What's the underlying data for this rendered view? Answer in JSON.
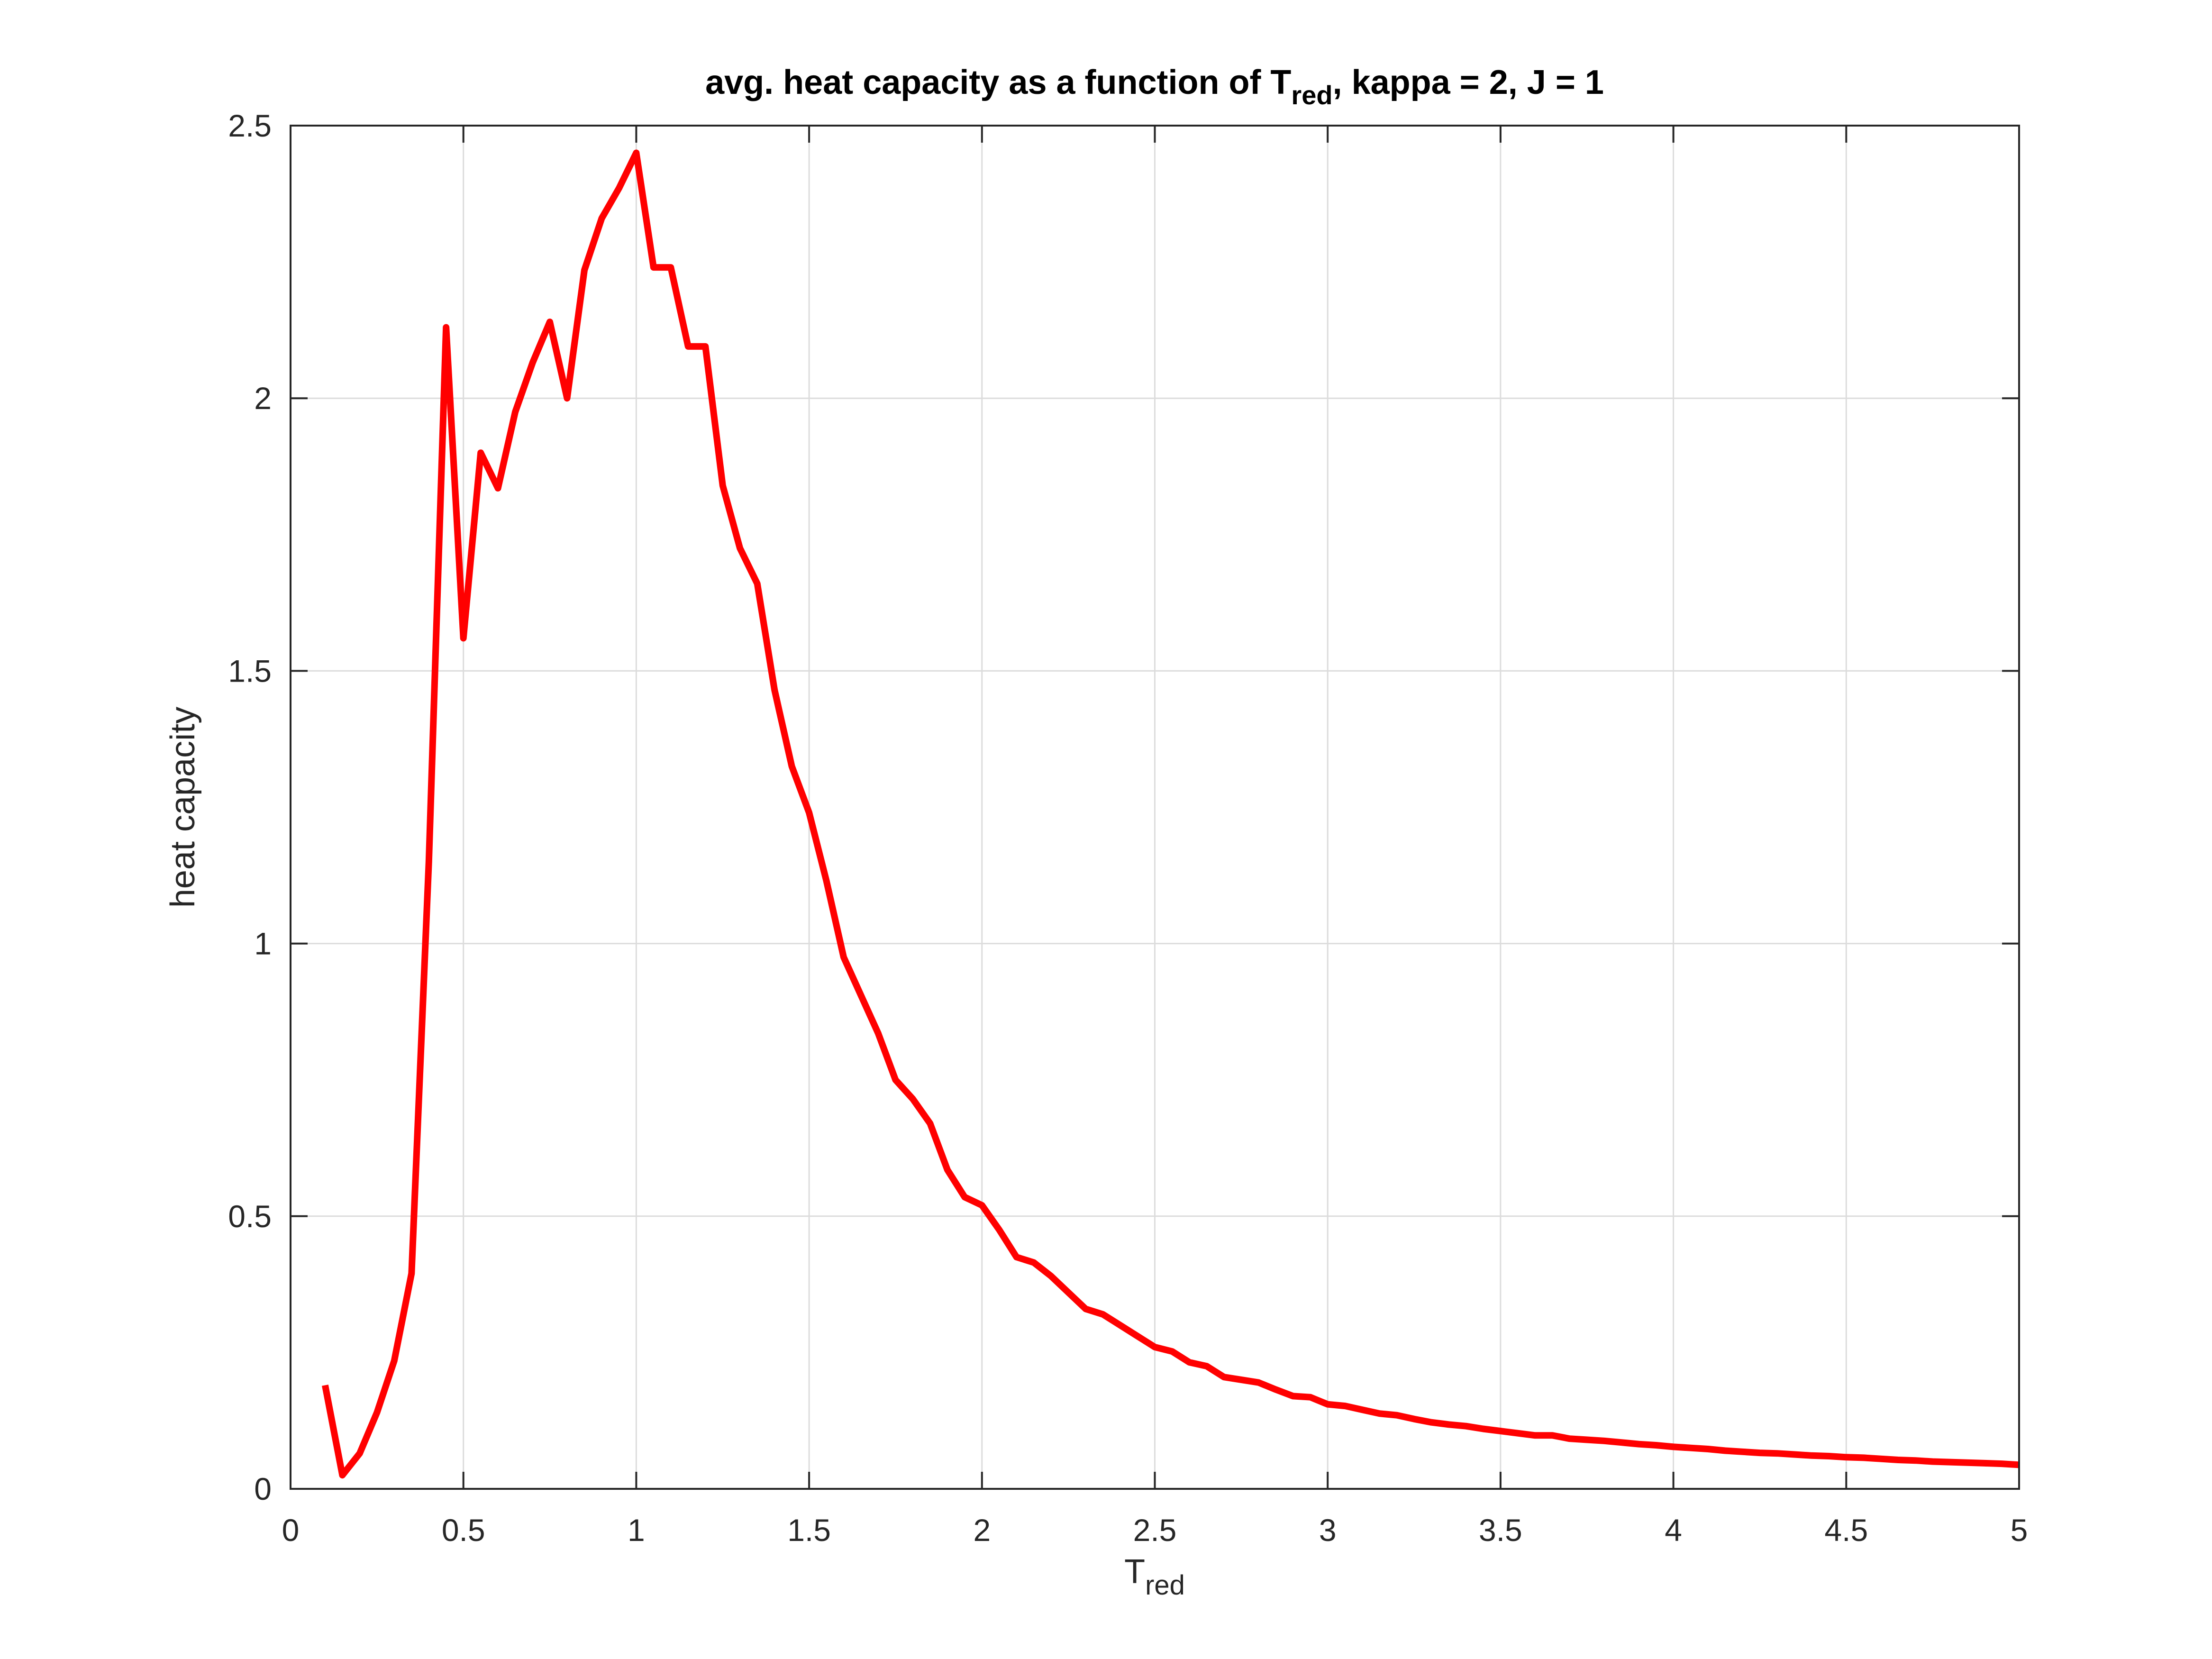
{
  "chart_data": {
    "type": "line",
    "title": {
      "prefix": "avg. heat capacity as a function of T",
      "subscript": "red",
      "suffix": ", kappa = 2, J = 1"
    },
    "xlabel": {
      "main": "T",
      "subscript": "red"
    },
    "ylabel": "heat capacity",
    "xlim": [
      0,
      5
    ],
    "ylim": [
      0,
      2.5
    ],
    "xticks": [
      0,
      0.5,
      1,
      1.5,
      2,
      2.5,
      3,
      3.5,
      4,
      4.5,
      5
    ],
    "xtick_labels": [
      "0",
      "0.5",
      "1",
      "1.5",
      "2",
      "2.5",
      "3",
      "3.5",
      "4",
      "4.5",
      "5"
    ],
    "yticks": [
      0,
      0.5,
      1,
      1.5,
      2,
      2.5
    ],
    "ytick_labels": [
      "0",
      "0.5",
      "1",
      "1.5",
      "2",
      "2.5"
    ],
    "grid": true,
    "line_color": "#ff0000",
    "series": [
      {
        "x": [
          0.1,
          0.15,
          0.2,
          0.25,
          0.3,
          0.35,
          0.4,
          0.45,
          0.5,
          0.55,
          0.6,
          0.65,
          0.7,
          0.75,
          0.8,
          0.85,
          0.9,
          0.95,
          1.0,
          1.05,
          1.1,
          1.15,
          1.2,
          1.25,
          1.3,
          1.35,
          1.4,
          1.45,
          1.5,
          1.55,
          1.6,
          1.65,
          1.7,
          1.75,
          1.8,
          1.85,
          1.9,
          1.95,
          2.0,
          2.05,
          2.1,
          2.15,
          2.2,
          2.25,
          2.3,
          2.35,
          2.4,
          2.45,
          2.5,
          2.55,
          2.6,
          2.65,
          2.7,
          2.75,
          2.8,
          2.85,
          2.9,
          2.95,
          3.0,
          3.05,
          3.1,
          3.15,
          3.2,
          3.25,
          3.3,
          3.35,
          3.4,
          3.45,
          3.5,
          3.55,
          3.6,
          3.65,
          3.7,
          3.75,
          3.8,
          3.85,
          3.9,
          3.95,
          4.0,
          4.05,
          4.1,
          4.15,
          4.2,
          4.25,
          4.3,
          4.35,
          4.4,
          4.45,
          4.5,
          4.55,
          4.6,
          4.65,
          4.7,
          4.75,
          4.8,
          4.85,
          4.9,
          4.95,
          5.0
        ],
        "y": [
          0.19,
          0.025,
          0.065,
          0.14,
          0.235,
          0.395,
          1.15,
          2.13,
          1.56,
          1.9,
          1.835,
          1.975,
          2.065,
          2.14,
          2.0,
          2.235,
          2.33,
          2.385,
          2.45,
          2.24,
          2.24,
          2.095,
          2.095,
          1.84,
          1.725,
          1.66,
          1.465,
          1.325,
          1.24,
          1.115,
          0.975,
          0.905,
          0.835,
          0.75,
          0.715,
          0.67,
          0.585,
          0.535,
          0.52,
          0.475,
          0.425,
          0.415,
          0.39,
          0.36,
          0.33,
          0.32,
          0.3,
          0.28,
          0.26,
          0.252,
          0.232,
          0.225,
          0.205,
          0.2,
          0.195,
          0.182,
          0.17,
          0.168,
          0.155,
          0.152,
          0.145,
          0.138,
          0.135,
          0.128,
          0.122,
          0.118,
          0.115,
          0.11,
          0.106,
          0.102,
          0.098,
          0.098,
          0.092,
          0.09,
          0.088,
          0.085,
          0.082,
          0.08,
          0.077,
          0.075,
          0.073,
          0.07,
          0.068,
          0.066,
          0.065,
          0.063,
          0.061,
          0.06,
          0.058,
          0.057,
          0.055,
          0.053,
          0.052,
          0.05,
          0.049,
          0.048,
          0.047,
          0.046,
          0.044
        ]
      }
    ]
  }
}
